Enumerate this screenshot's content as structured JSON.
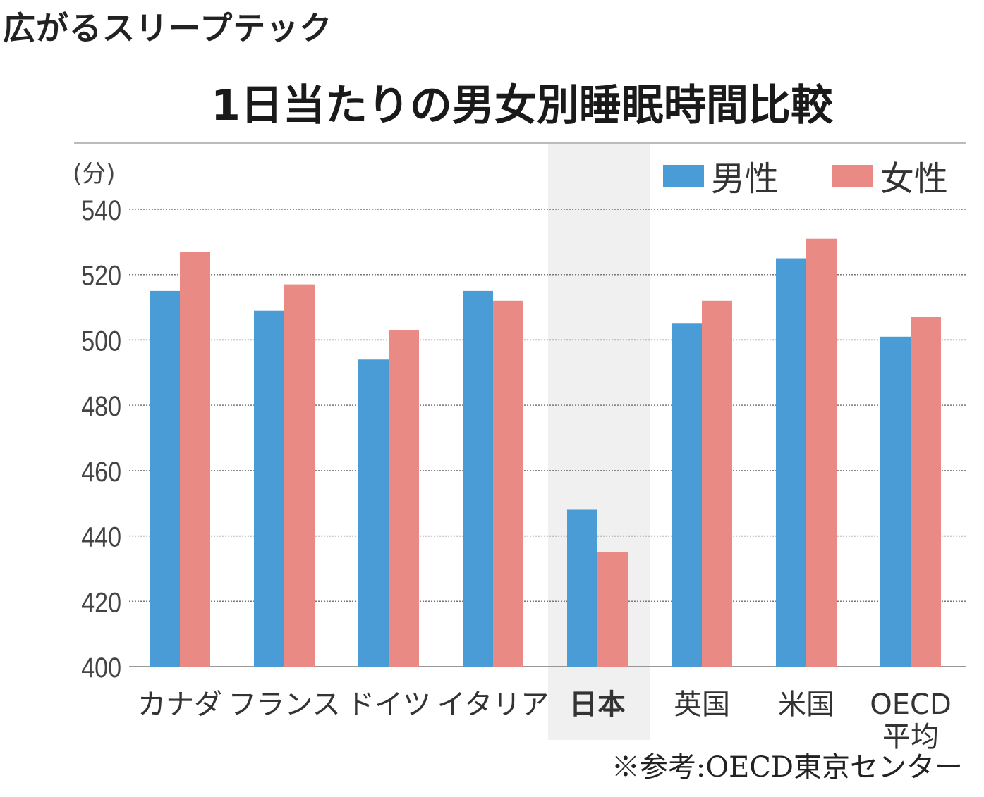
{
  "page_title": "広がるスリープテック",
  "chart_data": {
    "type": "bar",
    "title": "1日当たりの男女別睡眠時間比較",
    "ylabel": "(分)",
    "ylim": [
      400,
      540
    ],
    "yticks": [
      400,
      420,
      440,
      460,
      480,
      500,
      520,
      540
    ],
    "grid": true,
    "legend_position": "top-right",
    "categories": [
      "カナダ",
      "フランス",
      "ドイツ",
      "イタリア",
      "日本",
      "英国",
      "米国",
      "OECD\n平均"
    ],
    "highlight_category": "日本",
    "series": [
      {
        "name": "男性",
        "color": "#4a9cd6",
        "values": [
          515,
          509,
          494,
          515,
          448,
          505,
          525,
          501
        ]
      },
      {
        "name": "女性",
        "color": "#e98a85",
        "values": [
          527,
          517,
          503,
          512,
          435,
          512,
          531,
          507
        ]
      }
    ],
    "source": "※参考:OECD東京センター"
  }
}
